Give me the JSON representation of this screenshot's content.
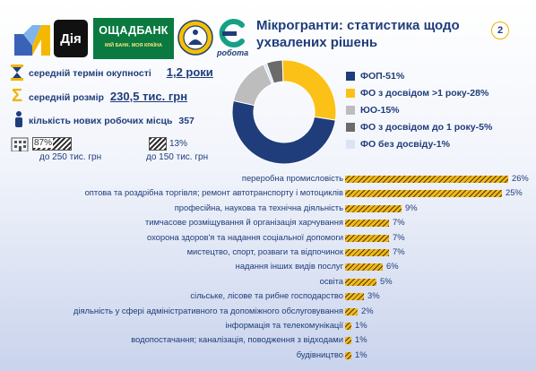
{
  "header": {
    "title": "Мікрогранти: статистика щодо ухвалених рішень",
    "page_number": "2"
  },
  "logos": {
    "diia": "Дія",
    "oschadbank": "ОЩАДБАНК",
    "oschadbank_slogan": "МІЙ БАНК. МОЯ КРАЇНА",
    "robota": "робота"
  },
  "stats": {
    "payback_label": "середній термін окупності",
    "payback_value": "1,2 роки",
    "avg_size_label": "середній розмір",
    "avg_size_value": "230,5 тис. грн",
    "jobs_label": "кількість нових робочих місць",
    "jobs_value": "357"
  },
  "size_split": {
    "big_pct": "87%",
    "big_label": "до 250 тис. грн",
    "small_pct": "13%",
    "small_label": "до 150 тис. грн",
    "big_value": 87,
    "small_value": 13
  },
  "chart_data": [
    {
      "type": "pie",
      "donut": true,
      "labels": [
        "ФОП",
        "ФО з досвідом >1 року",
        "ЮО",
        "ФО з досвідом до 1 року",
        "ФО без досвіду"
      ],
      "values": [
        51,
        28,
        15,
        5,
        1
      ],
      "legend_labels": [
        "ФОП-51%",
        "ФО з досвідом >1 року-28%",
        "ЮО-15%",
        "ФО з досвідом до 1 року-5%",
        "ФО без досвіду-1%"
      ],
      "colors": [
        "#1f3d7a",
        "#fcc117",
        "#bdbdbd",
        "#6b6b6b",
        "#dbe4f6"
      ],
      "legend_position": "right"
    },
    {
      "type": "bar",
      "orientation": "horizontal",
      "categories": [
        "переробна  промисловість",
        "оптова та роздрібна торгівля; ремонт  автотранспорту  і мотоциклів",
        "професійна,  наукова та технічна діяльність",
        "тимчасове розміщування й організація харчування",
        "охорона здоров'я та надання соціальної допомоги",
        "мистецтво,  спорт, розваги та відпочинок",
        "надання  інших видів  послуг",
        "освіта",
        "сільське, лісове та рибне господарство",
        "діяльність у сфері адміністративного  та допоміжного обслуговування",
        "інформація та телекомунікації",
        "водопостачання;  каналізація, поводження  з відходами",
        "будівництво"
      ],
      "values": [
        26,
        25,
        9,
        7,
        7,
        7,
        6,
        5,
        3,
        2,
        1,
        1,
        1
      ],
      "labels": [
        "26%",
        "25%",
        "9%",
        "7%",
        "7%",
        "7%",
        "6%",
        "5%",
        "3%",
        "2%",
        "1%",
        "1%",
        "1%"
      ],
      "unit": "%"
    }
  ]
}
